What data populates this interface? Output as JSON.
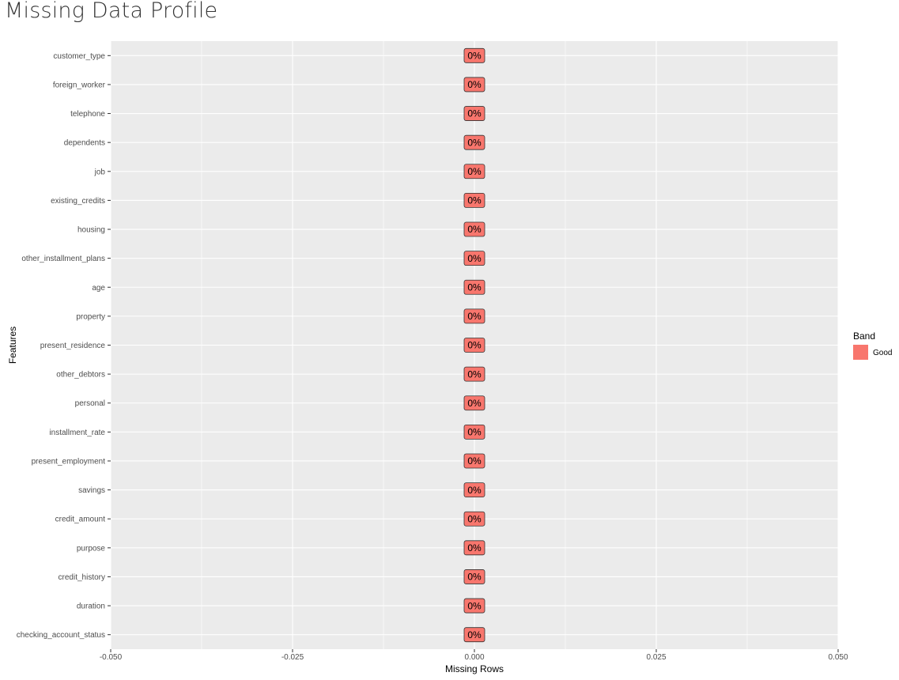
{
  "page": {
    "title": "Missing Data Profile"
  },
  "chart_data": {
    "type": "bar",
    "orientation": "horizontal",
    "title": "Missing Data Profile",
    "xlabel": "Missing Rows",
    "ylabel": "Features",
    "xlim": [
      -0.05,
      0.05
    ],
    "x_ticks": [
      -0.05,
      -0.025,
      0,
      0.025,
      0.05
    ],
    "x_tick_labels": [
      "-0.050",
      "-0.025",
      "0.000",
      "0.025",
      "0.050"
    ],
    "categories": [
      "customer_type",
      "foreign_worker",
      "telephone",
      "dependents",
      "job",
      "existing_credits",
      "housing",
      "other_installment_plans",
      "age",
      "property",
      "present_residence",
      "other_debtors",
      "personal",
      "installment_rate",
      "present_employment",
      "savings",
      "credit_amount",
      "purpose",
      "credit_history",
      "duration",
      "checking_account_status"
    ],
    "values": [
      0,
      0,
      0,
      0,
      0,
      0,
      0,
      0,
      0,
      0,
      0,
      0,
      0,
      0,
      0,
      0,
      0,
      0,
      0,
      0,
      0
    ],
    "data_labels": [
      "0%",
      "0%",
      "0%",
      "0%",
      "0%",
      "0%",
      "0%",
      "0%",
      "0%",
      "0%",
      "0%",
      "0%",
      "0%",
      "0%",
      "0%",
      "0%",
      "0%",
      "0%",
      "0%",
      "0%",
      "0%"
    ],
    "band": [
      "Good",
      "Good",
      "Good",
      "Good",
      "Good",
      "Good",
      "Good",
      "Good",
      "Good",
      "Good",
      "Good",
      "Good",
      "Good",
      "Good",
      "Good",
      "Good",
      "Good",
      "Good",
      "Good",
      "Good",
      "Good"
    ],
    "legend": {
      "title": "Band",
      "placement": "right",
      "entries": [
        {
          "name": "Good",
          "color": "#f8766d"
        }
      ]
    },
    "grid": true,
    "colors": {
      "panel": "#ebebeb",
      "grid": "#ffffff",
      "fill": "#f8766d"
    }
  }
}
